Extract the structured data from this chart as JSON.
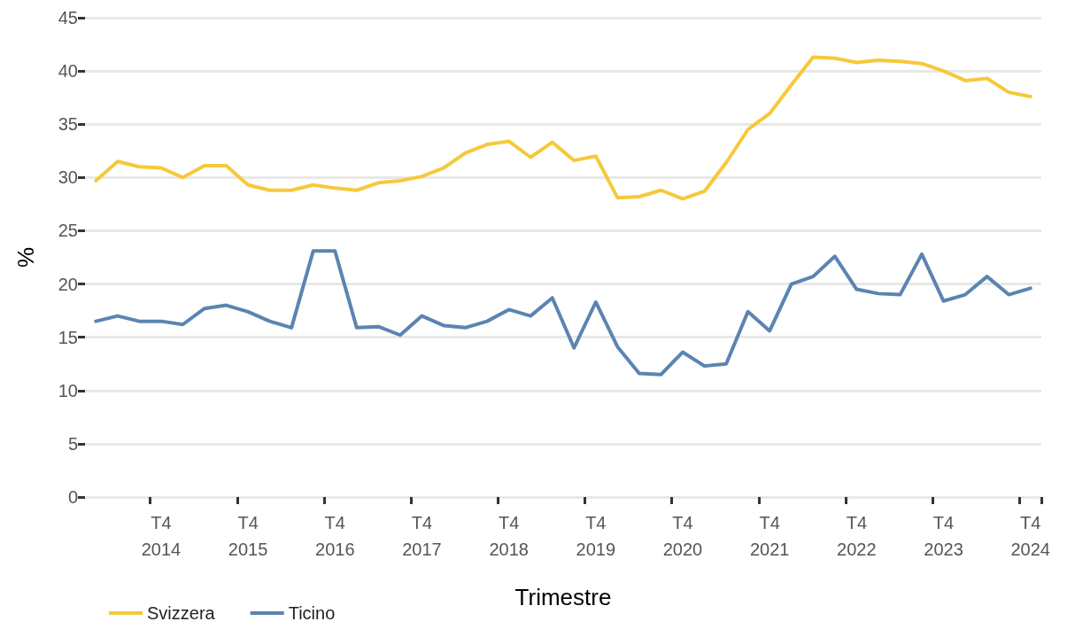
{
  "chart_data": {
    "type": "line",
    "xlabel": "Trimestre",
    "ylabel": "%",
    "categories": [
      null,
      null,
      null,
      "T4\n2014",
      null,
      null,
      null,
      "T4\n2015",
      null,
      null,
      null,
      "T4\n2016",
      null,
      null,
      null,
      "T4\n2017",
      null,
      null,
      null,
      "T4\n2018",
      null,
      null,
      null,
      "T4\n2019",
      null,
      null,
      null,
      "T4\n2020",
      null,
      null,
      null,
      "T4\n2021",
      null,
      null,
      null,
      "T4\n2022",
      null,
      null,
      null,
      "T4\n2023",
      null,
      null,
      null,
      "T4\n2024"
    ],
    "series": [
      {
        "name": "Svizzera",
        "color": "#f5c93c",
        "values": [
          29.7,
          31.5,
          31.0,
          30.9,
          30.0,
          31.1,
          31.1,
          29.3,
          28.8,
          28.8,
          29.3,
          29.0,
          28.8,
          29.5,
          29.7,
          30.1,
          30.9,
          32.3,
          33.1,
          33.4,
          31.9,
          33.3,
          31.6,
          32.0,
          28.1,
          28.2,
          28.8,
          28.0,
          28.7,
          31.4,
          34.5,
          36.0,
          38.7,
          41.3,
          41.2,
          40.8,
          41.0,
          40.9,
          40.7,
          40.0,
          39.1,
          39.3,
          38.0,
          37.6
        ]
      },
      {
        "name": "Ticino",
        "color": "#5b84b1",
        "values": [
          16.5,
          17.0,
          16.5,
          16.5,
          16.2,
          17.7,
          18.0,
          17.4,
          16.5,
          15.9,
          23.1,
          23.1,
          15.9,
          16.0,
          15.2,
          17.0,
          16.1,
          15.9,
          16.5,
          17.6,
          17.0,
          18.7,
          14.0,
          18.3,
          14.1,
          11.6,
          11.5,
          13.6,
          12.3,
          12.5,
          17.4,
          15.6,
          20.0,
          20.7,
          22.6,
          19.5,
          19.1,
          19.0,
          22.8,
          18.4,
          19.0,
          20.7,
          19.0,
          19.6
        ]
      }
    ],
    "ylim": [
      0,
      45
    ],
    "yticks": [
      0,
      5,
      10,
      15,
      20,
      25,
      30,
      35,
      40,
      45
    ],
    "grid": "y",
    "legend": "bottom left",
    "marker": "none",
    "line_style": "solid"
  }
}
